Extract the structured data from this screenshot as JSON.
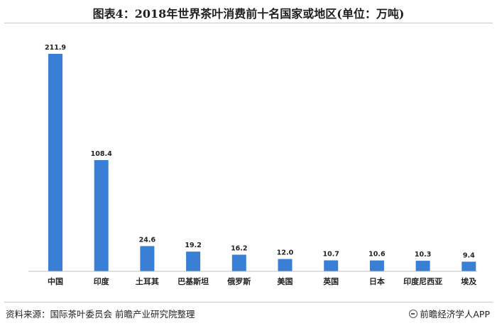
{
  "title": "图表4：2018年世界茶叶消费前十名国家或地区(单位：万吨)",
  "source": "资料来源：国际茶叶委员会 前瞻产业研究院整理",
  "brand": "前瞻经济学人APP",
  "watermark": "前瞻产业研究院",
  "bar_color": "#3a7fd6",
  "chart_data": {
    "type": "bar",
    "title": "图表4：2018年世界茶叶消费前十名国家或地区(单位：万吨)",
    "xlabel": "",
    "ylabel": "",
    "categories": [
      "中国",
      "印度",
      "土耳其",
      "巴基斯坦",
      "俄罗斯",
      "美国",
      "英国",
      "日本",
      "印度尼西亚",
      "埃及"
    ],
    "values": [
      211.9,
      108.4,
      24.6,
      19.2,
      16.2,
      12.0,
      10.7,
      10.6,
      10.3,
      9.4
    ],
    "value_labels": [
      "211.9",
      "108.4",
      "24.6",
      "19.2",
      "16.2",
      "12.0",
      "10.7",
      "10.6",
      "10.3",
      "9.4"
    ],
    "ylim": [
      0,
      211.9
    ],
    "grid": false,
    "legend": "none"
  }
}
